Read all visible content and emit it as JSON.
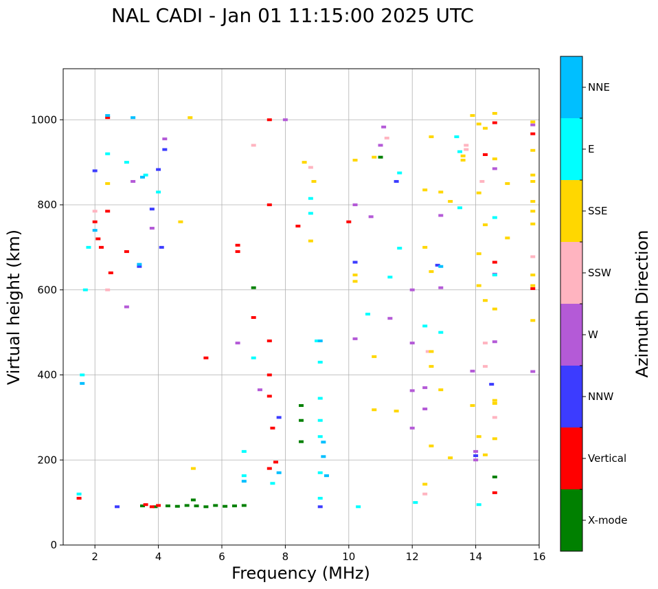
{
  "chart_data": {
    "type": "scatter",
    "title": "NAL CADI - Jan 01 11:15:00 2025 UTC",
    "xlabel": "Frequency (MHz)",
    "ylabel": "Virtual height (km)",
    "xlim": [
      1,
      16
    ],
    "ylim": [
      0,
      1120
    ],
    "xticks": [
      2,
      4,
      6,
      8,
      10,
      12,
      14,
      16
    ],
    "yticks": [
      0,
      200,
      400,
      600,
      800,
      1000
    ],
    "grid": true,
    "colorbar": {
      "label": "Azimuth Direction",
      "position": "right",
      "categories": [
        {
          "name": "X-mode",
          "color": "#008000"
        },
        {
          "name": "Vertical",
          "color": "#ff0000"
        },
        {
          "name": "NNW",
          "color": "#3c3cff"
        },
        {
          "name": "W",
          "color": "#b45ad7"
        },
        {
          "name": "SSW",
          "color": "#ffb4c0"
        },
        {
          "name": "SSE",
          "color": "#ffd700"
        },
        {
          "name": "E",
          "color": "#00ffff"
        },
        {
          "name": "NNE",
          "color": "#00bfff"
        }
      ]
    },
    "series": [
      {
        "name": "X-mode",
        "points": [
          [
            3.5,
            92
          ],
          [
            3.9,
            90
          ],
          [
            4.3,
            92
          ],
          [
            4.6,
            91
          ],
          [
            4.9,
            93
          ],
          [
            5.2,
            92
          ],
          [
            5.5,
            90
          ],
          [
            5.8,
            93
          ],
          [
            6.1,
            91
          ],
          [
            6.4,
            92
          ],
          [
            6.7,
            93
          ],
          [
            8.5,
            328
          ],
          [
            8.5,
            293
          ],
          [
            8.5,
            243
          ],
          [
            7.0,
            605
          ],
          [
            11.0,
            912
          ],
          [
            14.6,
            160
          ],
          [
            5.1,
            106
          ]
        ]
      },
      {
        "name": "Vertical",
        "points": [
          [
            1.5,
            110
          ],
          [
            2.0,
            760
          ],
          [
            2.1,
            720
          ],
          [
            2.2,
            700
          ],
          [
            2.4,
            1005
          ],
          [
            2.4,
            785
          ],
          [
            2.5,
            640
          ],
          [
            3.0,
            690
          ],
          [
            3.6,
            95
          ],
          [
            3.8,
            90
          ],
          [
            4.0,
            93
          ],
          [
            6.5,
            705
          ],
          [
            6.5,
            690
          ],
          [
            7.0,
            535
          ],
          [
            7.5,
            1000
          ],
          [
            7.5,
            800
          ],
          [
            7.5,
            480
          ],
          [
            7.5,
            400
          ],
          [
            7.5,
            350
          ],
          [
            7.6,
            275
          ],
          [
            7.5,
            180
          ],
          [
            7.7,
            195
          ],
          [
            8.4,
            750
          ],
          [
            10.0,
            760
          ],
          [
            14.3,
            918
          ],
          [
            14.6,
            993
          ],
          [
            14.6,
            665
          ],
          [
            14.6,
            123
          ],
          [
            15.8,
            967
          ],
          [
            15.8,
            603
          ],
          [
            5.5,
            440
          ]
        ]
      },
      {
        "name": "NNW",
        "points": [
          [
            2.0,
            880
          ],
          [
            3.4,
            655
          ],
          [
            3.8,
            790
          ],
          [
            4.0,
            883
          ],
          [
            4.1,
            700
          ],
          [
            4.2,
            930
          ],
          [
            7.8,
            300
          ],
          [
            9.1,
            90
          ],
          [
            10.2,
            665
          ],
          [
            11.5,
            855
          ],
          [
            12.8,
            658
          ],
          [
            14.5,
            378
          ],
          [
            14.0,
            210
          ],
          [
            2.7,
            90
          ]
        ]
      },
      {
        "name": "W",
        "points": [
          [
            3.0,
            560
          ],
          [
            3.2,
            855
          ],
          [
            3.8,
            745
          ],
          [
            4.2,
            955
          ],
          [
            6.5,
            475
          ],
          [
            7.2,
            365
          ],
          [
            10.2,
            800
          ],
          [
            10.2,
            485
          ],
          [
            10.7,
            772
          ],
          [
            11.1,
            983
          ],
          [
            11.0,
            940
          ],
          [
            11.3,
            533
          ],
          [
            12.0,
            600
          ],
          [
            12.0,
            475
          ],
          [
            12.0,
            363
          ],
          [
            12.0,
            275
          ],
          [
            12.4,
            370
          ],
          [
            12.4,
            320
          ],
          [
            12.9,
            775
          ],
          [
            12.9,
            605
          ],
          [
            13.9,
            409
          ],
          [
            14.0,
            220
          ],
          [
            14.0,
            200
          ],
          [
            14.6,
            885
          ],
          [
            14.6,
            637
          ],
          [
            14.6,
            478
          ],
          [
            15.8,
            988
          ],
          [
            15.8,
            408
          ],
          [
            8.0,
            1000
          ]
        ]
      },
      {
        "name": "SSW",
        "points": [
          [
            2.0,
            785
          ],
          [
            2.4,
            600
          ],
          [
            7.0,
            940
          ],
          [
            8.8,
            888
          ],
          [
            11.2,
            957
          ],
          [
            12.4,
            120
          ],
          [
            12.5,
            455
          ],
          [
            13.7,
            940
          ],
          [
            13.7,
            930
          ],
          [
            14.3,
            475
          ],
          [
            14.3,
            420
          ],
          [
            14.6,
            300
          ],
          [
            14.2,
            855
          ],
          [
            15.8,
            678
          ]
        ]
      },
      {
        "name": "SSE",
        "points": [
          [
            2.4,
            850
          ],
          [
            4.7,
            760
          ],
          [
            5.0,
            1005
          ],
          [
            5.1,
            180
          ],
          [
            8.6,
            900
          ],
          [
            8.8,
            715
          ],
          [
            8.9,
            855
          ],
          [
            10.2,
            905
          ],
          [
            10.2,
            635
          ],
          [
            10.2,
            620
          ],
          [
            10.8,
            912
          ],
          [
            10.8,
            443
          ],
          [
            10.8,
            318
          ],
          [
            11.5,
            315
          ],
          [
            12.4,
            835
          ],
          [
            12.4,
            700
          ],
          [
            12.4,
            143
          ],
          [
            12.6,
            960
          ],
          [
            12.6,
            643
          ],
          [
            12.6,
            455
          ],
          [
            12.6,
            420
          ],
          [
            12.6,
            233
          ],
          [
            12.9,
            830
          ],
          [
            12.9,
            365
          ],
          [
            13.2,
            808
          ],
          [
            13.2,
            205
          ],
          [
            13.9,
            1010
          ],
          [
            14.1,
            990
          ],
          [
            14.1,
            828
          ],
          [
            14.1,
            685
          ],
          [
            14.1,
            610
          ],
          [
            14.1,
            255
          ],
          [
            14.3,
            980
          ],
          [
            14.3,
            753
          ],
          [
            14.3,
            575
          ],
          [
            14.3,
            212
          ],
          [
            14.6,
            1015
          ],
          [
            14.6,
            908
          ],
          [
            14.6,
            555
          ],
          [
            14.6,
            340
          ],
          [
            14.6,
            333
          ],
          [
            14.6,
            250
          ],
          [
            15.0,
            850
          ],
          [
            15.0,
            722
          ],
          [
            15.8,
            995
          ],
          [
            15.8,
            928
          ],
          [
            15.8,
            870
          ],
          [
            15.8,
            855
          ],
          [
            15.8,
            808
          ],
          [
            15.8,
            785
          ],
          [
            15.8,
            755
          ],
          [
            15.8,
            635
          ],
          [
            15.8,
            610
          ],
          [
            15.8,
            528
          ],
          [
            13.9,
            328
          ],
          [
            13.6,
            915
          ],
          [
            13.6,
            905
          ]
        ]
      },
      {
        "name": "E",
        "points": [
          [
            1.5,
            120
          ],
          [
            1.6,
            400
          ],
          [
            1.7,
            600
          ],
          [
            1.8,
            700
          ],
          [
            2.4,
            920
          ],
          [
            3.0,
            900
          ],
          [
            3.6,
            870
          ],
          [
            4.0,
            830
          ],
          [
            7.0,
            440
          ],
          [
            8.8,
            815
          ],
          [
            8.8,
            780
          ],
          [
            9.0,
            480
          ],
          [
            9.1,
            430
          ],
          [
            9.1,
            345
          ],
          [
            9.1,
            293
          ],
          [
            9.1,
            255
          ],
          [
            9.1,
            170
          ],
          [
            9.1,
            110
          ],
          [
            10.3,
            90
          ],
          [
            10.6,
            543
          ],
          [
            11.3,
            630
          ],
          [
            11.6,
            875
          ],
          [
            11.6,
            698
          ],
          [
            12.1,
            100
          ],
          [
            12.4,
            515
          ],
          [
            12.9,
            500
          ],
          [
            13.4,
            960
          ],
          [
            13.5,
            925
          ],
          [
            13.5,
            793
          ],
          [
            14.1,
            95
          ],
          [
            14.6,
            770
          ],
          [
            14.6,
            635
          ],
          [
            6.7,
            220
          ],
          [
            6.7,
            163
          ],
          [
            7.6,
            145
          ]
        ]
      },
      {
        "name": "NNE",
        "points": [
          [
            1.6,
            380
          ],
          [
            2.4,
            1010
          ],
          [
            2.0,
            740
          ],
          [
            3.2,
            1005
          ],
          [
            3.5,
            865
          ],
          [
            6.7,
            150
          ],
          [
            7.8,
            170
          ],
          [
            9.2,
            242
          ],
          [
            9.2,
            208
          ],
          [
            9.3,
            163
          ],
          [
            9.1,
            480
          ],
          [
            12.9,
            655
          ],
          [
            3.4,
            660
          ]
        ]
      }
    ]
  }
}
